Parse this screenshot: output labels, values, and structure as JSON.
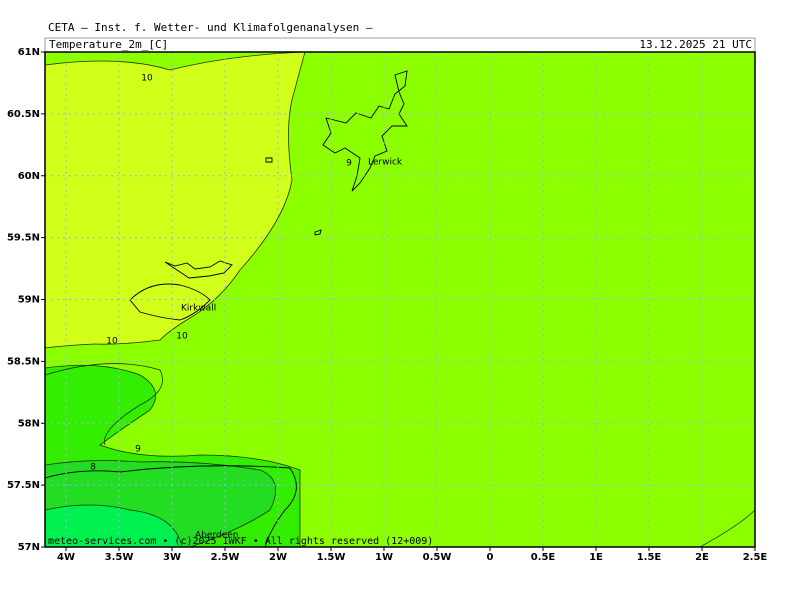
{
  "header": {
    "title": "CETA — Inst. f. Wetter- und Klimafolgenanalysen —",
    "parameter": "Temperature_2m_[C]",
    "valid_time": "13.12.2025 21 UTC"
  },
  "x_axis": {
    "ticks": [
      "4W",
      "3.5W",
      "3W",
      "2.5W",
      "2W",
      "1.5W",
      "1W",
      "0.5W",
      "0",
      "0.5E",
      "1E",
      "1.5E",
      "2E",
      "2.5E"
    ]
  },
  "y_axis": {
    "ticks": [
      "61N",
      "60.5N",
      "60N",
      "59.5N",
      "59N",
      "58.5N",
      "58N",
      "57.5N",
      "57N"
    ]
  },
  "contour_labels": [
    "10",
    "10",
    "10",
    "9",
    "8",
    "9"
  ],
  "places": [
    "Lerwick",
    "Kirkwall",
    "Aberdeen"
  ],
  "footer": "meteo-services.com • (c)2025 IWKF • All rights reserved (12+009)"
}
